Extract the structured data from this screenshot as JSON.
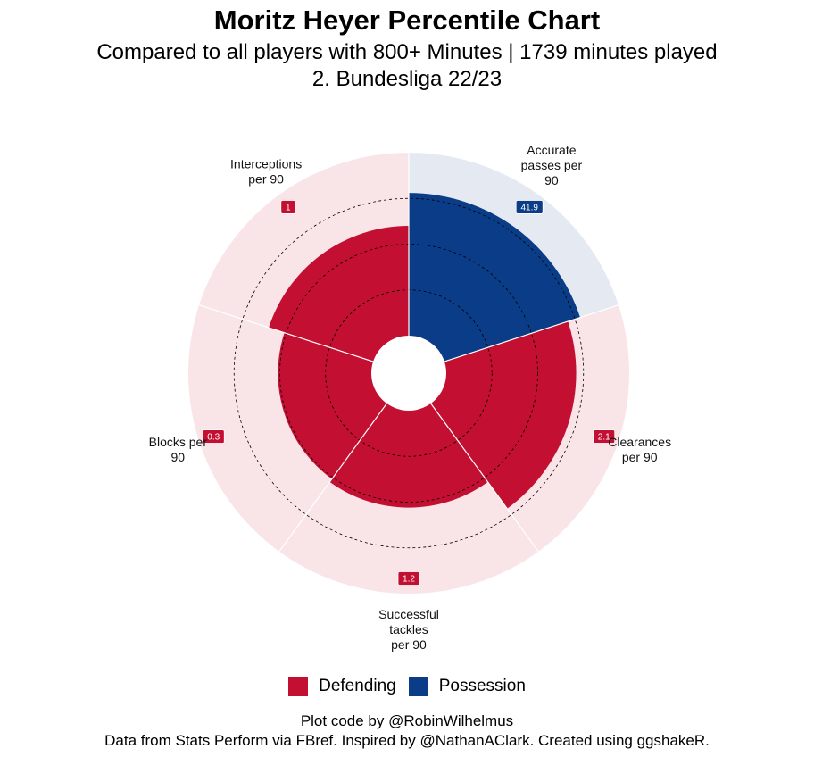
{
  "header": {
    "title": "Moritz Heyer Percentile Chart",
    "subtitle_line1": "Compared to all players with 800+ Minutes | 1739 minutes played",
    "subtitle_line2": "2. Bundesliga 22/23"
  },
  "chart_data": {
    "type": "polar-bar",
    "rlim": [
      0,
      100
    ],
    "grid": "dashed circles at 25, 50, 75",
    "categories": [
      {
        "label": [
          "Accurate",
          "passes per",
          "90"
        ],
        "group": "Possession",
        "percentile": 78,
        "value_label": "41.9"
      },
      {
        "label": [
          "Clearances",
          "per 90"
        ],
        "group": "Defending",
        "percentile": 71,
        "value_label": "2.1"
      },
      {
        "label": [
          "Successful",
          "tackles",
          "per 90"
        ],
        "group": "Defending",
        "percentile": 53,
        "value_label": "1.2"
      },
      {
        "label": [
          "Blocks per",
          "90"
        ],
        "group": "Defending",
        "percentile": 51,
        "value_label": "0.3"
      },
      {
        "label": [
          "Interceptions",
          "per 90"
        ],
        "group": "Defending",
        "percentile": 60,
        "value_label": "1"
      }
    ],
    "groups": [
      {
        "name": "Defending",
        "color": "#c30f31",
        "background": "#f9e5e8"
      },
      {
        "name": "Possession",
        "color": "#0b3c87",
        "background": "#e4e9f2"
      }
    ]
  },
  "legend": {
    "items": [
      {
        "name": "Defending",
        "color": "#c30f31"
      },
      {
        "name": "Possession",
        "color": "#0b3c87"
      }
    ]
  },
  "caption": {
    "line1": "Plot code by @RobinWilhelmus",
    "line2": "Data from Stats Perform via FBref. Inspired by @NathanAClark. Created using ggshakeR."
  }
}
